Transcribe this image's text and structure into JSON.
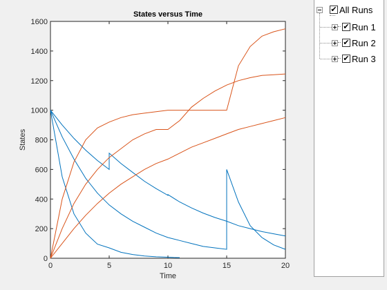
{
  "chart_data": {
    "type": "line",
    "title": "States versus Time",
    "xlabel": "Time",
    "ylabel": "States",
    "xlim": [
      0,
      20
    ],
    "ylim": [
      0,
      1600
    ],
    "xticks": [
      "0",
      "5",
      "10",
      "15",
      "20"
    ],
    "yticks": [
      "0",
      "200",
      "400",
      "600",
      "800",
      "1000",
      "1200",
      "1400",
      "1600"
    ],
    "grid": false,
    "colors": {
      "blue": "#0072bd",
      "orange": "#d95319"
    },
    "series": [
      {
        "color": "#0072bd",
        "x": [
          0,
          1,
          2,
          3,
          4,
          5,
          6,
          7,
          8,
          9,
          10,
          10.5,
          11
        ],
        "y": [
          1000,
          550,
          300,
          170,
          95,
          70,
          40,
          25,
          15,
          10,
          7,
          5,
          4
        ]
      },
      {
        "color": "#0072bd",
        "x": [
          0,
          1,
          2,
          3,
          4,
          5,
          5,
          6,
          7,
          8,
          9,
          10,
          11,
          12,
          13,
          14,
          15,
          15,
          16,
          17,
          18,
          19,
          20
        ],
        "y": [
          1000,
          820,
          670,
          540,
          440,
          360,
          360,
          300,
          250,
          210,
          170,
          140,
          120,
          100,
          80,
          70,
          60,
          600,
          380,
          220,
          140,
          90,
          60
        ]
      },
      {
        "color": "#0072bd",
        "x": [
          0,
          1,
          2,
          3,
          4,
          5,
          5,
          6,
          7,
          8,
          9,
          10,
          10,
          11,
          12,
          13,
          14,
          15,
          16,
          17,
          18,
          19,
          20
        ],
        "y": [
          1000,
          900,
          810,
          730,
          660,
          600,
          710,
          640,
          580,
          520,
          470,
          425,
          430,
          380,
          340,
          305,
          275,
          250,
          220,
          200,
          180,
          165,
          150
        ]
      },
      {
        "color": "#d95319",
        "x": [
          0,
          1,
          2,
          3,
          4,
          5,
          6,
          7,
          8,
          9,
          10,
          11,
          12,
          13,
          14,
          15,
          15.5,
          16,
          17,
          18,
          19,
          20
        ],
        "y": [
          0,
          400,
          650,
          800,
          880,
          920,
          950,
          970,
          980,
          990,
          1000,
          1000,
          1000,
          1000,
          1000,
          1000,
          1150,
          1300,
          1430,
          1500,
          1530,
          1550
        ]
      },
      {
        "color": "#d95319",
        "x": [
          0,
          1,
          2,
          3,
          4,
          5,
          6,
          7,
          8,
          9,
          10,
          11,
          12,
          13,
          14,
          15,
          16,
          17,
          18,
          19,
          20
        ],
        "y": [
          0,
          200,
          370,
          500,
          600,
          680,
          740,
          800,
          840,
          870,
          870,
          930,
          1020,
          1080,
          1130,
          1170,
          1200,
          1220,
          1235,
          1240,
          1245
        ]
      },
      {
        "color": "#d95319",
        "x": [
          0,
          1,
          2,
          3,
          4,
          5,
          6,
          7,
          8,
          9,
          10,
          11,
          12,
          13,
          14,
          15,
          16,
          17,
          18,
          19,
          20
        ],
        "y": [
          0,
          100,
          200,
          290,
          370,
          440,
          500,
          550,
          600,
          640,
          670,
          710,
          750,
          780,
          810,
          840,
          870,
          890,
          910,
          930,
          950
        ]
      }
    ]
  },
  "tree": {
    "root_label": "All Runs",
    "items": [
      {
        "label": "Run 1"
      },
      {
        "label": "Run 2"
      },
      {
        "label": "Run 3"
      }
    ],
    "check_mark": "✔"
  }
}
